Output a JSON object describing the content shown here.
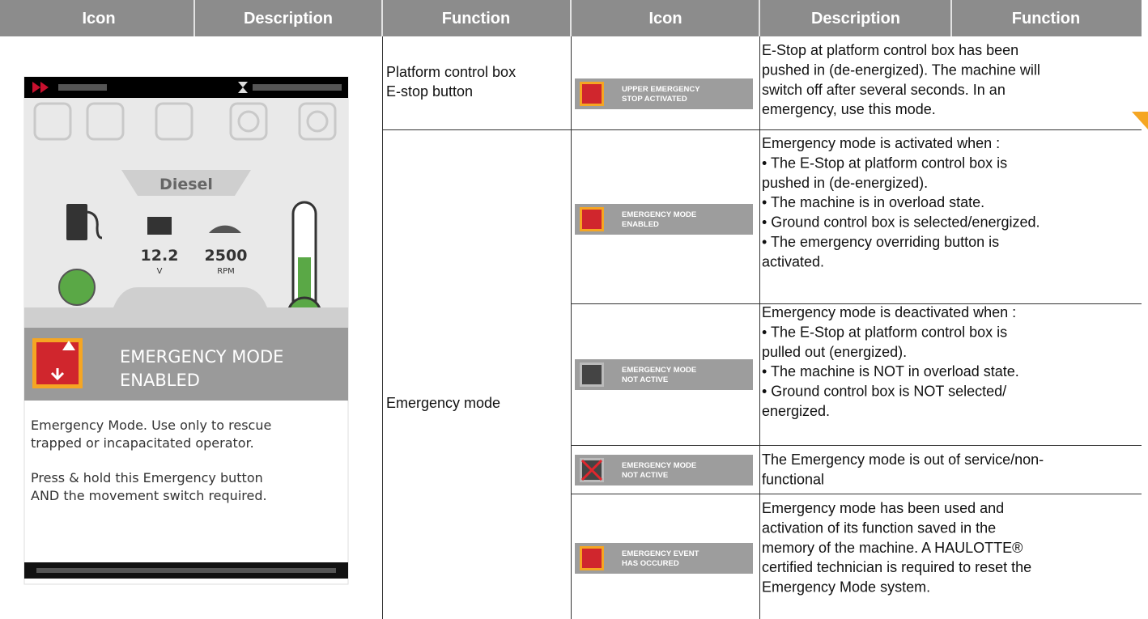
{
  "header": {
    "columns": [
      "Icon",
      "Description",
      "Function",
      "Icon",
      "Description",
      "Function"
    ]
  },
  "screen": {
    "fuel_type": "Diesel",
    "battery_value": "12.2",
    "battery_unit": "V",
    "rpm_value": "2500",
    "rpm_unit": "RPM",
    "banner": [
      "EMERGENCY MODE",
      "ENABLED"
    ],
    "message_lines": [
      "Emergency Mode. Use only to rescue",
      "trapped or incapacitated operator."
    ],
    "instruction_lines": [
      "Press & hold this Emergency button",
      "AND the movement switch required."
    ]
  },
  "functions": [
    {
      "lines": [
        "Platform control box",
        "E-stop button"
      ]
    },
    {
      "lines": [
        "Emergency mode"
      ]
    }
  ],
  "rows": [
    {
      "icon_label": [
        "UPPER EMERGENCY",
        "STOP ACTIVATED"
      ],
      "description": [
        "E-Stop at platform control box has been",
        "pushed in (de-energized). The machine will",
        "switch off after several seconds. In an",
        "emergency, use this mode."
      ]
    },
    {
      "icon_label": [
        "EMERGENCY MODE",
        "ENABLED"
      ],
      "description": [
        "Emergency mode is activated when :",
        "• The E-Stop at platform control box is",
        "pushed in (de-energized).",
        "• The machine is in overload state.",
        "• Ground control box is selected/energized.",
        "• The emergency overriding button is",
        "activated."
      ]
    },
    {
      "icon_label": [
        "EMERGENCY MODE",
        "NOT ACTIVE"
      ],
      "description": [
        "Emergency mode is deactivated when :",
        "• The E-Stop at platform control box is",
        "pulled out (energized).",
        "• The machine is NOT in overload state.",
        "• Ground control box is NOT selected/",
        "energized."
      ]
    },
    {
      "icon_label": [
        "EMERGENCY MODE",
        "NOT ACTIVE"
      ],
      "description": [
        "The Emergency mode is out of service/non-",
        "functional"
      ]
    },
    {
      "icon_label": [
        "EMERGENCY EVENT",
        "HAS OCCURED"
      ],
      "description": [
        "Emergency mode has been used and",
        "activation of its function saved in the",
        "memory of the machine. A HAULOTTE®",
        "certified technician is required to reset the",
        "Emergency Mode system."
      ]
    }
  ]
}
